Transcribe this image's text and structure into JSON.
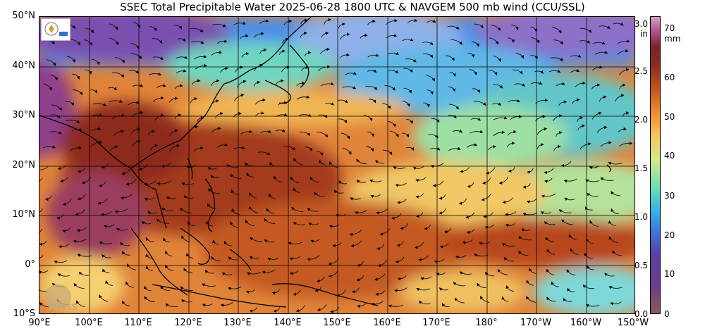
{
  "title": "SSEC Total Precipitable Water  2025-06-28 1800 UTC & NAVGEM 500 mb wind (CCU/SSL)",
  "lat_labels": [
    "50°N",
    "40°N",
    "30°N",
    "20°N",
    "10°N",
    "0°",
    "10°S"
  ],
  "lon_labels": [
    "90°E",
    "100°E",
    "110°E",
    "120°E",
    "130°E",
    "140°E",
    "150°E",
    "160°E",
    "170°E",
    "180°",
    "170°W",
    "160°W",
    "150°W"
  ],
  "colorbar": {
    "inch_unit": "in",
    "mm_unit": "mm",
    "inch_ticks": [
      "3.0",
      "2.5",
      "2.0",
      "1.5",
      "1.0",
      "0.5",
      "0.0"
    ],
    "mm_ticks": [
      "70",
      "60",
      "50",
      "40",
      "30",
      "20",
      "10",
      "0"
    ]
  },
  "logo_text": "CIMSS",
  "colors": {
    "deep_red": "#8e2a1c",
    "orange": "#ee8a2a",
    "yellow": "#f5c35a",
    "green": "#6fe2b0",
    "cyan": "#38b6e6",
    "blue": "#3a7be0",
    "purple": "#5b3fa6"
  }
}
